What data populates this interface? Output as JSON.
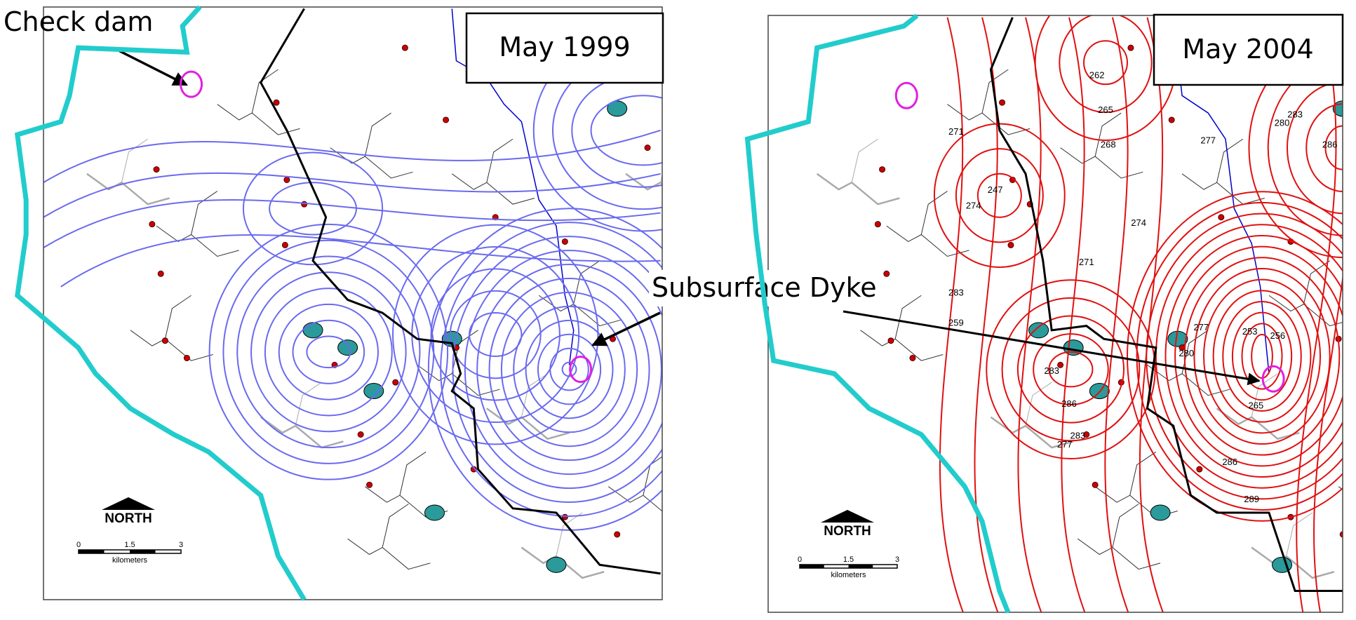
{
  "annotations": {
    "check_dam": "Check dam",
    "subsurface_dyke": "Subsurface Dyke"
  },
  "panels": [
    {
      "title": "May 1999",
      "north": "NORTH",
      "scale": {
        "labels": [
          "0",
          "1.5",
          "3"
        ],
        "unit": "kilometers"
      }
    },
    {
      "title": "May 2004",
      "north": "NORTH",
      "scale": {
        "labels": [
          "0",
          "1.5",
          "3"
        ],
        "unit": "kilometers"
      },
      "contour_labels": [
        262,
        265,
        268,
        271,
        274,
        247,
        277,
        280,
        283,
        286,
        274,
        271,
        283,
        259,
        280,
        253,
        256,
        277,
        283,
        286,
        283,
        277,
        286,
        289,
        265
      ]
    }
  ]
}
